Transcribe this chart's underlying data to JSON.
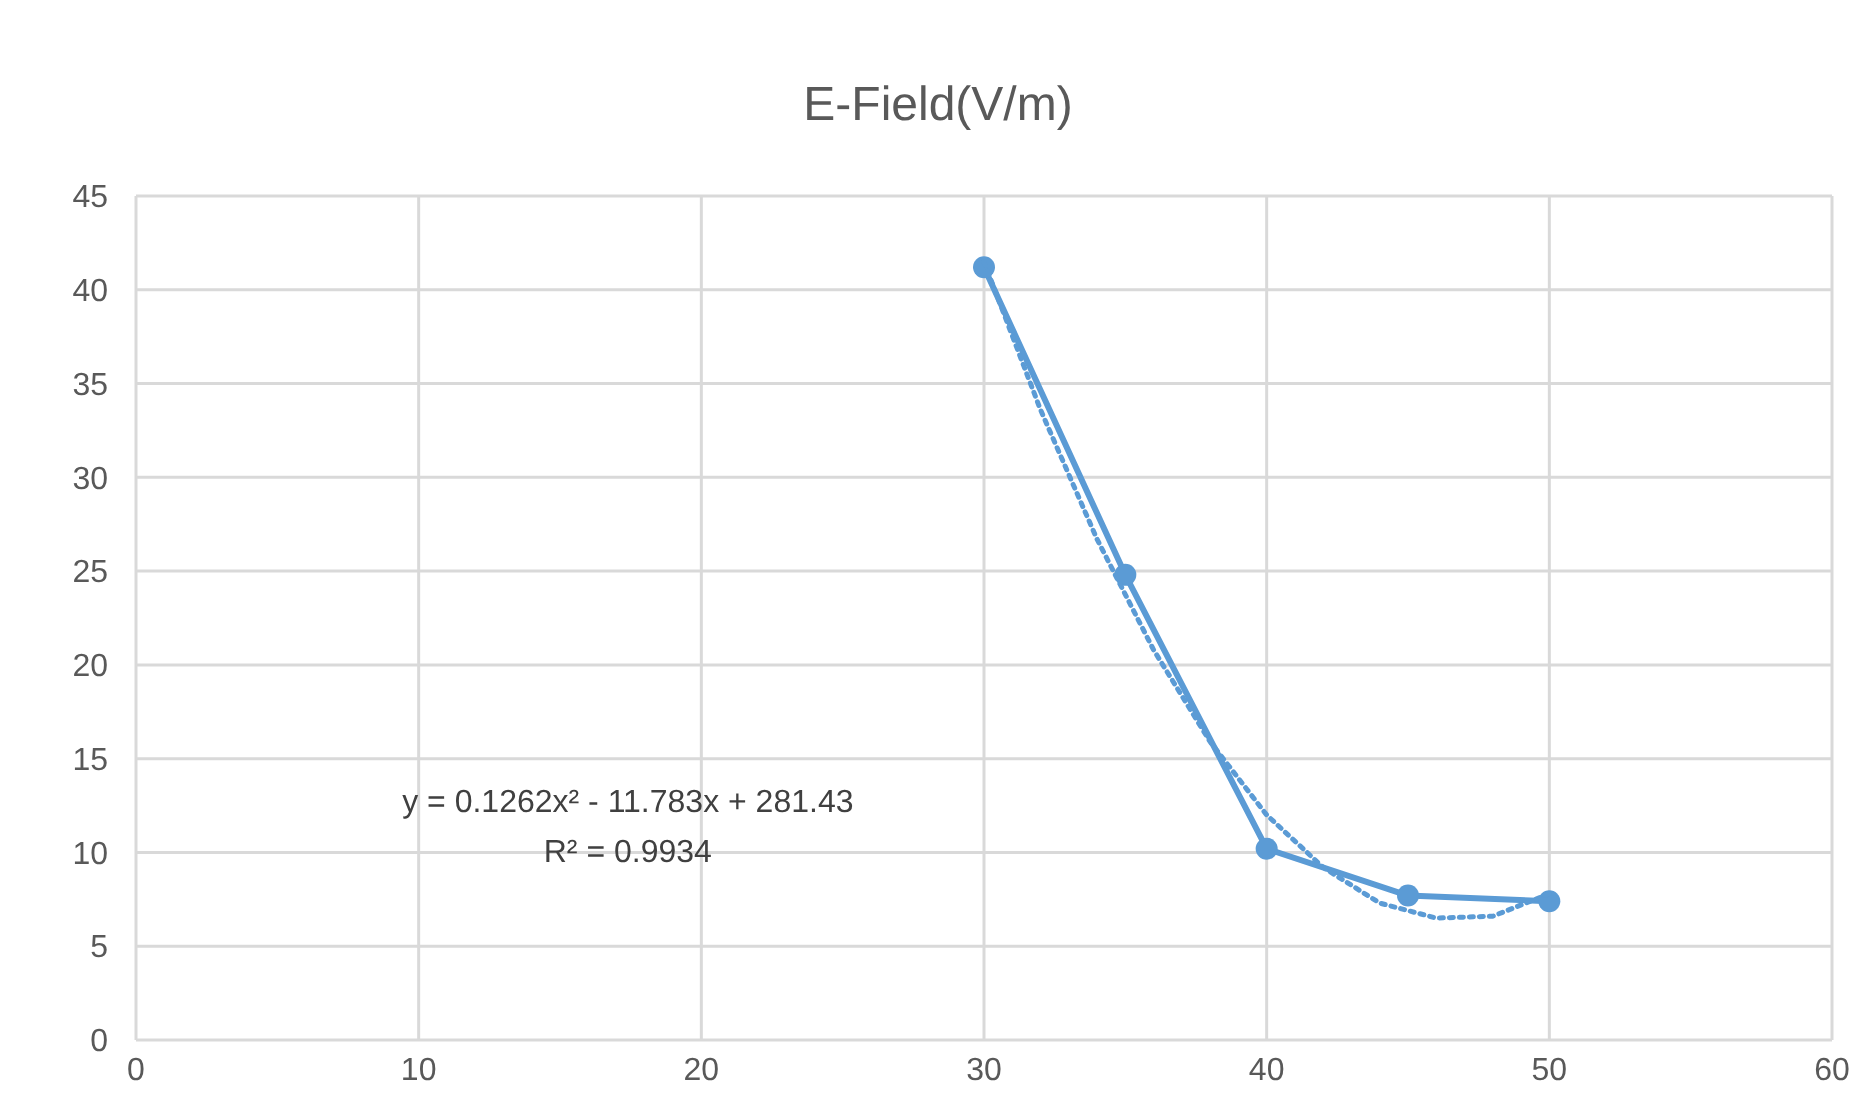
{
  "chart_data": {
    "type": "line",
    "title": "E-Field(V/m)",
    "xlim": [
      0,
      60
    ],
    "xticks": [
      0,
      10,
      20,
      30,
      40,
      50,
      60
    ],
    "ylim": [
      0,
      45
    ],
    "yticks": [
      0,
      5,
      10,
      15,
      20,
      25,
      30,
      35,
      40,
      45
    ],
    "grid": true,
    "series": [
      {
        "color": "#5b9bd5",
        "x": [
          30,
          35,
          40,
          45,
          50
        ],
        "values": [
          41.2,
          24.8,
          10.2,
          7.7,
          7.4
        ],
        "marker": "circle",
        "line_style": "solid"
      },
      {
        "color": "#5b9bd5",
        "x": [
          30,
          32,
          34,
          36,
          38,
          40,
          42,
          44,
          46,
          48,
          50
        ],
        "values": [
          41.5,
          33.6,
          26.7,
          20.8,
          15.9,
          12.0,
          9.2,
          7.3,
          6.5,
          6.6,
          7.8
        ],
        "marker": "none",
        "line_style": "dotted"
      }
    ],
    "annotations": [
      "y = 0.1262x² - 11.783x + 281.43",
      "R² = 0.9934"
    ]
  }
}
